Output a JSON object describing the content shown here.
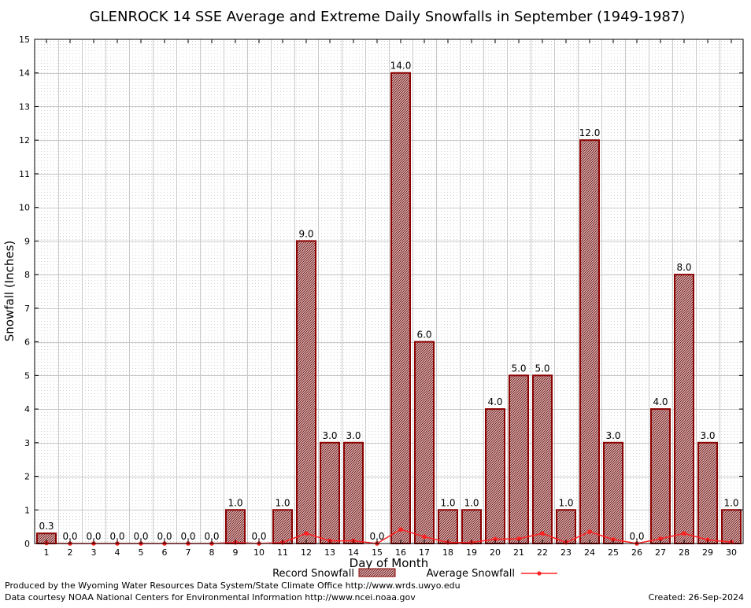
{
  "title": "GLENROCK 14 SSE Average and Extreme Daily Snowfalls in September (1949-1987)",
  "colors": {
    "bar_fill": "#a65a5a",
    "bar_stroke": "#8b0000",
    "average_line": "#ff2020",
    "grid": "#c8c8c8"
  },
  "footer": {
    "produced_by": "Produced by the Wyoming Water Resources Data System/State Climate Office http://www.wrds.uwyo.edu",
    "courtesy": "Data courtesy NOAA National Centers for Environmental Information http://www.ncei.noaa.gov",
    "created": "Created: 26-Sep-2024"
  },
  "chart_data": {
    "type": "bar",
    "title": "GLENROCK 14 SSE Average and Extreme Daily Snowfalls in September (1949-1987)",
    "xlabel": "Day of Month",
    "ylabel": "Snowfall (Inches)",
    "ylim": [
      0,
      15
    ],
    "y_ticks": [
      0,
      1,
      2,
      3,
      4,
      5,
      6,
      7,
      8,
      9,
      10,
      11,
      12,
      13,
      14,
      15
    ],
    "grid": true,
    "legend_position": "bottom-center",
    "categories": [
      "1",
      "2",
      "3",
      "4",
      "5",
      "6",
      "7",
      "8",
      "9",
      "10",
      "11",
      "12",
      "13",
      "14",
      "15",
      "16",
      "17",
      "18",
      "19",
      "20",
      "21",
      "22",
      "23",
      "24",
      "25",
      "26",
      "27",
      "28",
      "29",
      "30"
    ],
    "series": [
      {
        "name": "Record Snowfall",
        "type": "bar",
        "values": [
          0.3,
          0,
          0,
          0,
          0,
          0,
          0,
          0,
          1,
          0,
          1,
          9,
          3,
          3,
          0,
          14,
          6,
          1,
          1,
          4,
          5,
          5,
          1,
          12,
          3,
          0,
          4,
          8,
          3,
          1
        ],
        "labels": [
          "0.3",
          "0.0",
          "0.0",
          "0.0",
          "0.0",
          "0.0",
          "0.0",
          "0.0",
          "1.0",
          "0.0",
          "1.0",
          "9.0",
          "3.0",
          "3.0",
          "0.0",
          "14.0",
          "6.0",
          "1.0",
          "1.0",
          "4.0",
          "5.0",
          "5.0",
          "1.0",
          "12.0",
          "3.0",
          "0.0",
          "4.0",
          "8.0",
          "3.0",
          "1.0"
        ]
      },
      {
        "name": "Average Snowfall",
        "type": "line",
        "values": [
          0.01,
          0,
          0,
          0,
          0,
          0,
          0,
          0,
          0.03,
          0,
          0.03,
          0.3,
          0.08,
          0.08,
          0,
          0.42,
          0.2,
          0.03,
          0.03,
          0.13,
          0.14,
          0.3,
          0.03,
          0.35,
          0.12,
          0,
          0.14,
          0.3,
          0.11,
          0.04
        ]
      }
    ]
  }
}
